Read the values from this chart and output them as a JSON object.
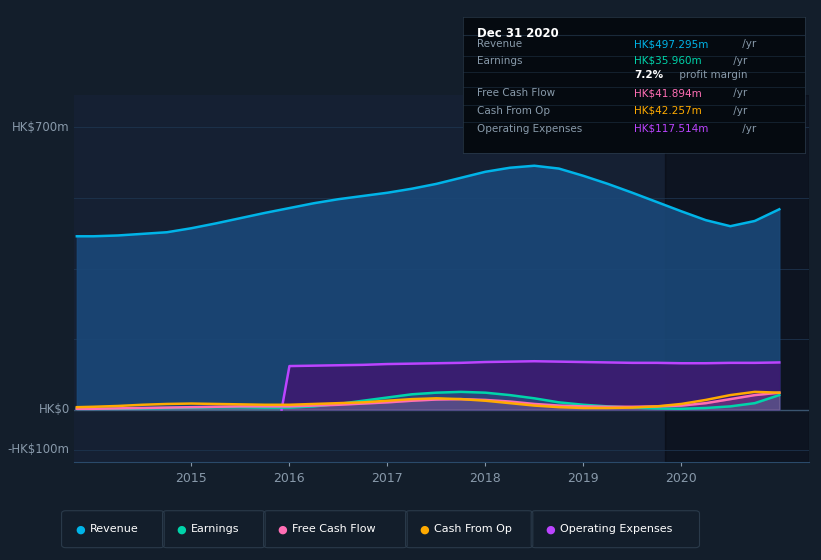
{
  "bg_color": "#131e2b",
  "plot_bg_color": "#152033",
  "grid_color": "#1e3550",
  "ylim": [
    -130,
    780
  ],
  "y_zero": 0,
  "xticks": [
    2015,
    2016,
    2017,
    2018,
    2019,
    2020
  ],
  "xlim": [
    2013.8,
    2021.3
  ],
  "ytick_positions": [
    -100,
    0,
    700
  ],
  "ytick_labels": [
    "-HK$100m",
    "HK$0",
    "HK$700m"
  ],
  "dark_overlay_start": 2019.83,
  "series": {
    "Revenue": {
      "color": "#00b4e8",
      "fill_color": "#1a4878",
      "x": [
        2013.83,
        2014.0,
        2014.25,
        2014.5,
        2014.75,
        2015.0,
        2015.25,
        2015.5,
        2015.75,
        2016.0,
        2016.25,
        2016.5,
        2016.75,
        2017.0,
        2017.25,
        2017.5,
        2017.75,
        2018.0,
        2018.25,
        2018.5,
        2018.75,
        2019.0,
        2019.25,
        2019.5,
        2019.75,
        2020.0,
        2020.25,
        2020.5,
        2020.75,
        2021.0
      ],
      "y": [
        430,
        430,
        432,
        436,
        440,
        450,
        462,
        475,
        488,
        500,
        512,
        522,
        530,
        538,
        548,
        560,
        575,
        590,
        600,
        605,
        598,
        580,
        560,
        538,
        515,
        492,
        470,
        455,
        468,
        497
      ]
    },
    "OperatingExpenses": {
      "color": "#bb44ff",
      "fill_color": "#3d1a70",
      "x": [
        2015.92,
        2016.0,
        2016.25,
        2016.5,
        2016.75,
        2017.0,
        2017.25,
        2017.5,
        2017.75,
        2018.0,
        2018.25,
        2018.5,
        2018.75,
        2019.0,
        2019.25,
        2019.5,
        2019.75,
        2020.0,
        2020.25,
        2020.5,
        2020.75,
        2021.0
      ],
      "y": [
        0,
        108,
        109,
        110,
        111,
        113,
        114,
        115,
        116,
        118,
        119,
        120,
        119,
        118,
        117,
        116,
        116,
        115,
        115,
        116,
        116,
        117
      ]
    },
    "Earnings": {
      "color": "#00d4aa",
      "x": [
        2013.83,
        2014.0,
        2014.25,
        2014.5,
        2014.75,
        2015.0,
        2015.25,
        2015.5,
        2015.75,
        2016.0,
        2016.25,
        2016.5,
        2016.75,
        2017.0,
        2017.25,
        2017.5,
        2017.75,
        2018.0,
        2018.25,
        2018.5,
        2018.75,
        2019.0,
        2019.25,
        2019.5,
        2019.75,
        2020.0,
        2020.25,
        2020.5,
        2020.75,
        2021.0
      ],
      "y": [
        2,
        2,
        2,
        3,
        4,
        5,
        6,
        6,
        5,
        5,
        8,
        14,
        22,
        30,
        38,
        42,
        44,
        42,
        36,
        28,
        18,
        12,
        8,
        5,
        3,
        2,
        4,
        8,
        16,
        36
      ]
    },
    "FreeCashFlow": {
      "color": "#ff6eb4",
      "x": [
        2013.83,
        2014.0,
        2014.25,
        2014.5,
        2014.75,
        2015.0,
        2015.25,
        2015.5,
        2015.75,
        2016.0,
        2016.25,
        2016.5,
        2016.75,
        2017.0,
        2017.25,
        2017.5,
        2017.75,
        2018.0,
        2018.25,
        2018.5,
        2018.75,
        2019.0,
        2019.25,
        2019.5,
        2019.75,
        2020.0,
        2020.25,
        2020.5,
        2020.75,
        2021.0
      ],
      "y": [
        2,
        2,
        3,
        4,
        5,
        6,
        7,
        8,
        8,
        8,
        10,
        12,
        15,
        18,
        22,
        25,
        26,
        24,
        20,
        14,
        10,
        8,
        7,
        7,
        8,
        10,
        16,
        26,
        36,
        42
      ]
    },
    "CashFromOp": {
      "color": "#ffaa00",
      "x": [
        2013.83,
        2014.0,
        2014.25,
        2014.5,
        2014.75,
        2015.0,
        2015.25,
        2015.5,
        2015.75,
        2016.0,
        2016.25,
        2016.5,
        2016.75,
        2017.0,
        2017.25,
        2017.5,
        2017.75,
        2018.0,
        2018.25,
        2018.5,
        2018.75,
        2019.0,
        2019.25,
        2019.5,
        2019.75,
        2020.0,
        2020.25,
        2020.5,
        2020.75,
        2021.0
      ],
      "y": [
        6,
        7,
        9,
        12,
        14,
        15,
        14,
        13,
        12,
        12,
        14,
        16,
        18,
        22,
        26,
        28,
        26,
        22,
        16,
        10,
        6,
        4,
        4,
        5,
        8,
        14,
        24,
        36,
        44,
        42
      ]
    }
  },
  "info_box": {
    "title": "Dec 31 2020",
    "rows": [
      {
        "label": "Revenue",
        "value": "HK$497.295m",
        "value_color": "#00b4e8",
        "suffix": " /yr"
      },
      {
        "label": "Earnings",
        "value": "HK$35.960m",
        "value_color": "#00d4aa",
        "suffix": " /yr"
      },
      {
        "label": "",
        "value": "7.2%",
        "value_color": "#ffffff",
        "suffix": " profit margin"
      },
      {
        "label": "Free Cash Flow",
        "value": "HK$41.894m",
        "value_color": "#ff6eb4",
        "suffix": " /yr"
      },
      {
        "label": "Cash From Op",
        "value": "HK$42.257m",
        "value_color": "#ffaa00",
        "suffix": " /yr"
      },
      {
        "label": "Operating Expenses",
        "value": "HK$117.514m",
        "value_color": "#bb44ff",
        "suffix": " /yr"
      }
    ]
  },
  "legend": [
    {
      "label": "Revenue",
      "color": "#00b4e8"
    },
    {
      "label": "Earnings",
      "color": "#00d4aa"
    },
    {
      "label": "Free Cash Flow",
      "color": "#ff6eb4"
    },
    {
      "label": "Cash From Op",
      "color": "#ffaa00"
    },
    {
      "label": "Operating Expenses",
      "color": "#bb44ff"
    }
  ]
}
